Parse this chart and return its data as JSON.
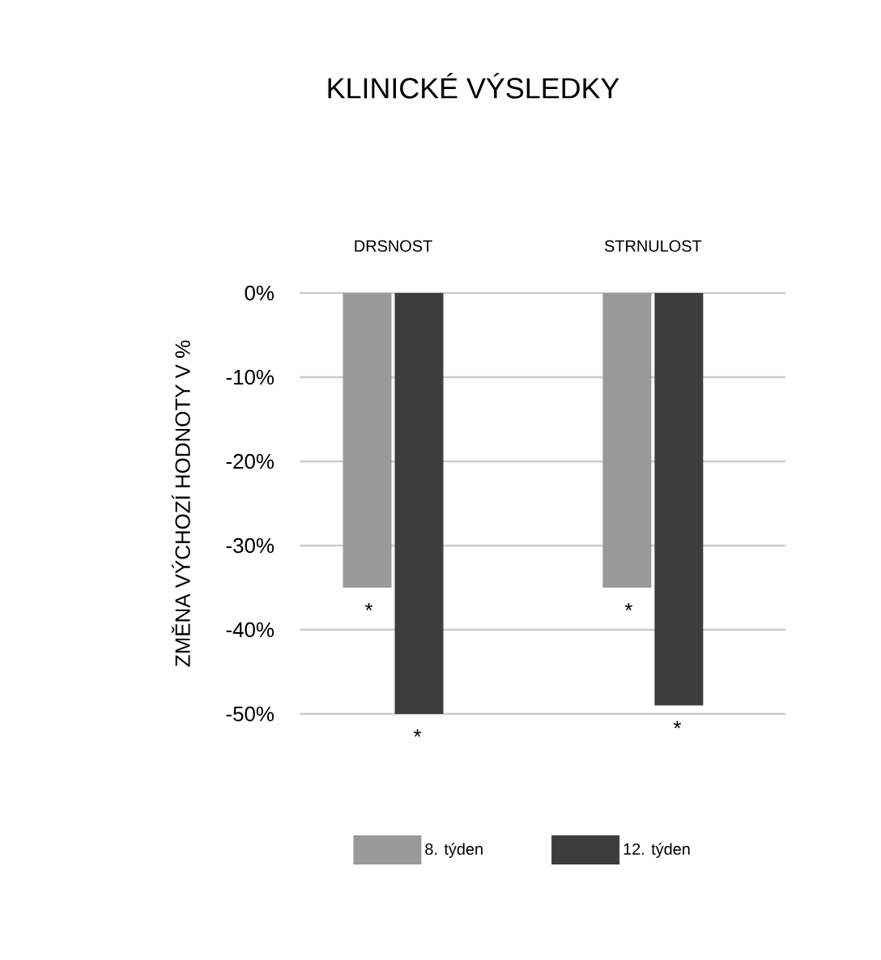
{
  "chart_data": {
    "type": "bar",
    "title": "KLINICKÉ VÝSLEDKY",
    "ylabel": "ZMĚNA VÝCHOZÍ HODNOTY V %",
    "categories": [
      "DRSNOST",
      "STRNULOST"
    ],
    "series": [
      {
        "name": "8. týden",
        "color": "#999999",
        "values": [
          -35,
          -35
        ]
      },
      {
        "name": "12. týden",
        "color": "#3d3d3d",
        "values": [
          -50,
          -49
        ]
      }
    ],
    "ylim": [
      -50,
      0
    ],
    "yticks": [
      {
        "value": 0,
        "label": "0%"
      },
      {
        "value": -10,
        "label": "-10%"
      },
      {
        "value": -20,
        "label": "-20%"
      },
      {
        "value": -30,
        "label": "-30%"
      },
      {
        "value": -40,
        "label": "-40%"
      },
      {
        "value": -50,
        "label": "-50%"
      }
    ],
    "grid": "y",
    "legend": "bottom",
    "annotations": [
      {
        "text": "*",
        "x": "DRSNOST",
        "y": -35
      },
      {
        "text": "*",
        "x": "DRSNOST",
        "y": -50
      },
      {
        "text": "*",
        "x": "STRNULOST",
        "y": -35
      },
      {
        "text": "*",
        "x": "STRNULOST",
        "y": -49
      }
    ]
  }
}
